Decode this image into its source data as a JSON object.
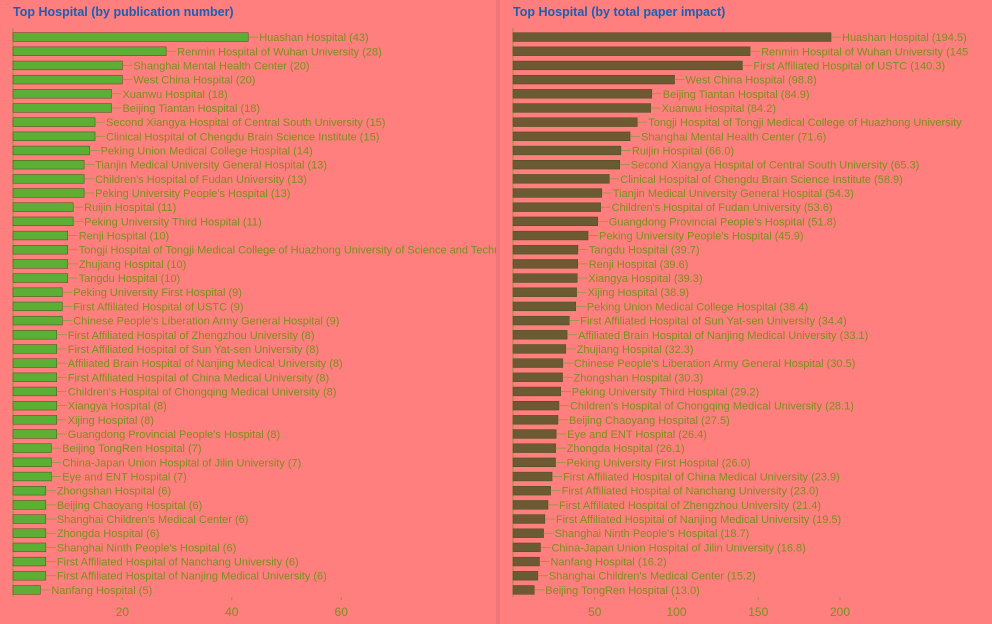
{
  "colors": {
    "background": "#ff7f7f",
    "title": "#1a5fb4",
    "left_bar": "#5cae34",
    "right_bar": "#6b5a32",
    "label_text": "#7a8f1a",
    "axis": "#8a9a3a"
  },
  "chart_data": [
    {
      "type": "bar",
      "orientation": "horizontal",
      "title": "Top Hospital (by publication number)",
      "xlabel": "",
      "ylabel": "",
      "xlim": [
        0,
        86
      ],
      "xticks": [
        20,
        40,
        60
      ],
      "grid": false,
      "categories": [
        "Huashan Hospital",
        "Renmin Hospital of Wuhan University",
        "Shanghai Mental Health Center",
        "West China Hospital",
        "Xuanwu Hospital",
        "Beijing Tiantan Hospital",
        "Second Xiangya Hospital of Central South University",
        "Clinical Hospital of Chengdu Brain Science Institute",
        "Peking Union Medical College Hospital",
        "Tianjin Medical University General Hospital",
        "Children's Hospital of Fudan University",
        "Peking University People's Hospital",
        "Ruijin Hospital",
        "Peking University Third Hospital",
        "Renji Hospital",
        "Tongji Hospital of Tongji Medical College of Huazhong University of Science and Technology",
        "Zhujiang Hospital",
        "Tangdu Hospital",
        "Peking University First Hospital",
        "First Affiliated Hospital of USTC",
        "Chinese People's Liberation Army General Hospital",
        "First Affiliated Hospital of Zhengzhou University",
        "First Affiliated Hospital of Sun Yat-sen University",
        "Affiliated Brain Hospital of Nanjing Medical University",
        "First Affiliated Hospital of China Medical University",
        "Children's Hospital of Chongqing Medical University",
        "Xiangya Hospital",
        "Xijing Hospital",
        "Guangdong Provincial People's Hospital",
        "Beijing TongRen Hospital",
        "China-Japan Union Hospital of Jilin University",
        "Eye and ENT Hospital",
        "Zhongshan Hospital",
        "Beijing Chaoyang Hospital",
        "Shanghai Children's Medical Center",
        "Zhongda Hospital",
        "Shanghai Ninth People's Hospital",
        "First Affiliated Hospital of Nanchang University",
        "First Affiliated Hospital of Nanjing Medical University",
        "Nanfang Hospital"
      ],
      "values": [
        43,
        28,
        20,
        20,
        18,
        18,
        15,
        15,
        14,
        13,
        13,
        13,
        11,
        11,
        10,
        10,
        10,
        10,
        9,
        9,
        9,
        8,
        8,
        8,
        8,
        8,
        8,
        8,
        8,
        7,
        7,
        7,
        6,
        6,
        6,
        6,
        6,
        6,
        6,
        5
      ],
      "value_format": "int"
    },
    {
      "type": "bar",
      "orientation": "horizontal",
      "title": "Top Hospital (by total paper impact)",
      "xlabel": "",
      "ylabel": "",
      "xlim": [
        0,
        235
      ],
      "xticks": [
        50,
        100,
        150,
        200
      ],
      "grid": false,
      "categories": [
        "Huashan Hospital",
        "Renmin Hospital of Wuhan University",
        "First Affiliated Hospital of USTC",
        "West China Hospital",
        "Beijing Tiantan Hospital",
        "Xuanwu Hospital",
        "Tongji Hospital of Tongji Medical College of Huazhong University",
        "Shanghai Mental Health Center",
        "Ruijin Hospital",
        "Second Xiangya Hospital of Central South University",
        "Clinical Hospital of Chengdu Brain Science Institute",
        "Tianjin Medical University General Hospital",
        "Children's Hospital of Fudan University",
        "Guangdong Provincial People's Hospital",
        "Peking University People's Hospital",
        "Tangdu Hospital",
        "Renji Hospital",
        "Xiangya Hospital",
        "Xijing Hospital",
        "Peking Union Medical College Hospital",
        "First Affiliated Hospital of Sun Yat-sen University",
        "Affiliated Brain Hospital of Nanjing Medical University",
        "Zhujiang Hospital",
        "Chinese People's Liberation Army General Hospital",
        "Zhongshan Hospital",
        "Peking University Third Hospital",
        "Children's Hospital of Chongqing Medical University",
        "Beijing Chaoyang Hospital",
        "Eye and ENT Hospital",
        "Zhongda Hospital",
        "Peking University First Hospital",
        "First Affiliated Hospital of China Medical University",
        "First Affiliated Hospital of Nanchang University",
        "First Affiliated Hospital of Zhengzhou University",
        "First Affiliated Hospital of Nanjing Medical University",
        "Shanghai Ninth People's Hospital",
        "China-Japan Union Hospital of Jilin University",
        "Nanfang Hospital",
        "Shanghai Children's Medical Center",
        "Beijing TongRen Hospital"
      ],
      "values": [
        194.5,
        145.0,
        140.3,
        98.8,
        84.9,
        84.2,
        76.0,
        71.6,
        66.0,
        65.3,
        58.9,
        54.3,
        53.6,
        51.8,
        45.9,
        39.7,
        39.6,
        39.3,
        38.9,
        38.4,
        34.4,
        33.1,
        32.3,
        30.5,
        30.3,
        29.2,
        28.1,
        27.5,
        26.4,
        26.1,
        26.0,
        23.9,
        23.0,
        21.4,
        19.5,
        18.7,
        16.8,
        16.2,
        15.2,
        13.0
      ],
      "value_format": "one_decimal",
      "label_overrides": {
        "1": "Renmin Hospital of Wuhan University (145",
        "6": "Tongji Hospital of Tongji Medical College of Huazhong University"
      }
    }
  ]
}
